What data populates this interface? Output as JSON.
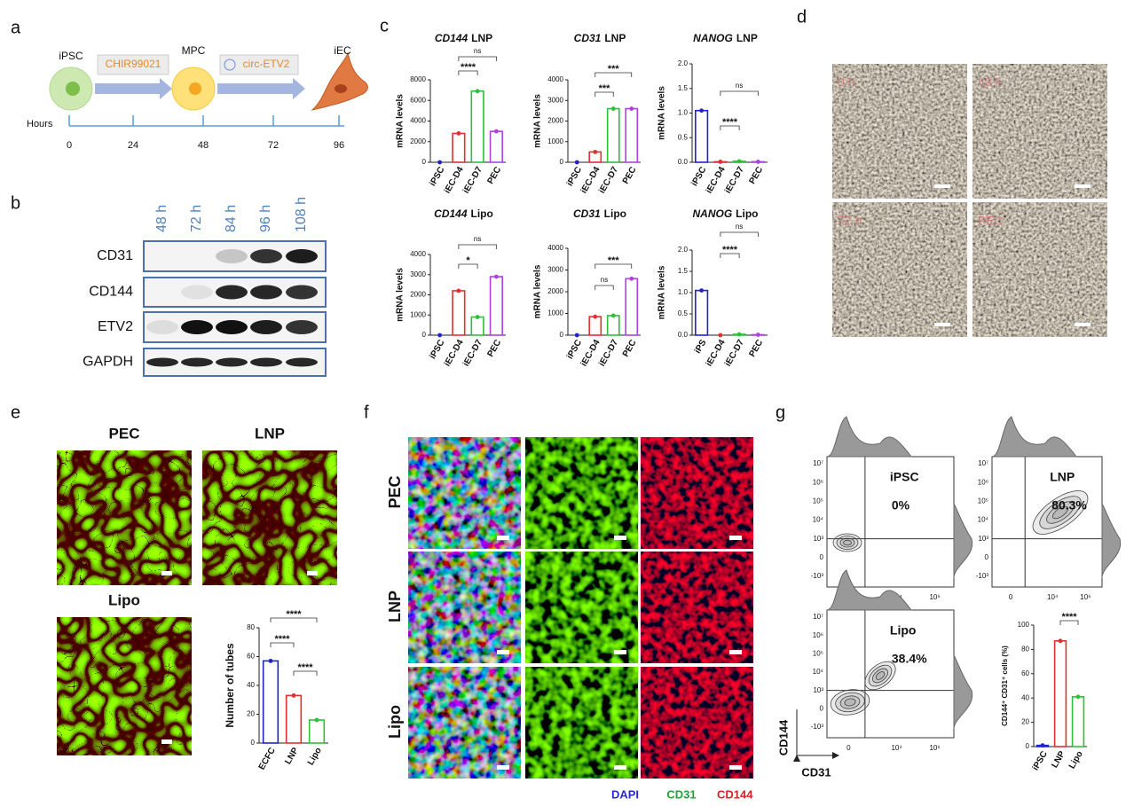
{
  "panel_letters": [
    "a",
    "b",
    "c",
    "d",
    "e",
    "f",
    "g"
  ],
  "panel_a": {
    "stages": [
      "iPSC",
      "MPC",
      "iEC"
    ],
    "steps": [
      "CHIR99021",
      "circ-ETV2"
    ],
    "axis_label": "Hours",
    "ticks": [
      0,
      24,
      48,
      72,
      96
    ]
  },
  "panel_b": {
    "lanes": [
      "48 h",
      "72 h",
      "84 h",
      "96 h",
      "108 h"
    ],
    "proteins": [
      "CD31",
      "CD144",
      "ETV2",
      "GAPDH"
    ]
  },
  "panel_d": {
    "image_labels": [
      "0 h",
      "48 h",
      "72 h",
      "PEC"
    ]
  },
  "panel_e": {
    "image_labels": [
      "PEC",
      "LNP",
      "Lipo"
    ]
  },
  "panel_f": {
    "row_labels": [
      "PEC",
      "LNP",
      "Lipo"
    ],
    "channels": [
      {
        "name": "DAPI",
        "color": "#2b2bd6"
      },
      {
        "name": "CD31",
        "color": "#1fa33a"
      },
      {
        "name": "CD144",
        "color": "#e02020"
      }
    ]
  },
  "panel_g": {
    "plots": [
      {
        "label": "iPSC",
        "percent": "0%"
      },
      {
        "label": "LNP",
        "percent": "80.3%"
      },
      {
        "label": "Lipo",
        "percent": "38.4%"
      }
    ],
    "y_axis": "CD144",
    "x_axis": "CD31",
    "y_ticks": [
      "10⁷",
      "10⁶",
      "10⁵",
      "10⁴",
      "10³",
      "0",
      "-10³"
    ],
    "x_ticks": [
      "0",
      "10⁴",
      "10⁶"
    ]
  },
  "chart_data": [
    {
      "type": "bar",
      "title_gene": "CD144",
      "title_method": "LNP",
      "y_label": "mRNA levels",
      "categories": [
        "iPSC",
        "iEC-D4",
        "iEC-D7",
        "PEC"
      ],
      "values": [
        0,
        2800,
        6900,
        3000
      ],
      "colors": [
        "#2222cc",
        "#e03030",
        "#2fbf3a",
        "#b040e0"
      ],
      "ylim": [
        0,
        8000
      ],
      "yticks": [
        0,
        2000,
        4000,
        6000,
        8000
      ],
      "significance": [
        "****",
        "ns"
      ]
    },
    {
      "type": "bar",
      "title_gene": "CD31",
      "title_method": "LNP",
      "y_label": "mRNA levels",
      "categories": [
        "iPSC",
        "iEC-D4",
        "iEC-D7",
        "PEC"
      ],
      "values": [
        0,
        500,
        2600,
        2600
      ],
      "colors": [
        "#2222cc",
        "#e03030",
        "#2fbf3a",
        "#b040e0"
      ],
      "ylim": [
        0,
        4000
      ],
      "yticks": [
        0,
        1000,
        2000,
        3000,
        4000
      ],
      "significance": [
        "***",
        "***"
      ]
    },
    {
      "type": "bar",
      "title_gene": "NANOG",
      "title_method": "LNP",
      "y_label": "mRNA levels",
      "categories": [
        "iPSC",
        "iEC-D4",
        "iEC-D7",
        "PEC"
      ],
      "values": [
        1.05,
        0.01,
        0.02,
        0.01
      ],
      "colors": [
        "#2222cc",
        "#e03030",
        "#2fbf3a",
        "#b040e0"
      ],
      "ylim": [
        0,
        2.0
      ],
      "yticks": [
        {
          "value": 0,
          "label": "0.0"
        },
        0.5,
        {
          "value": 1,
          "label": "1.0"
        },
        1.5,
        {
          "value": 2,
          "label": "2.0"
        }
      ],
      "significance": [
        "****",
        "ns"
      ]
    },
    {
      "type": "bar",
      "title_gene": "CD144",
      "title_method": "Lipo",
      "y_label": "mRNA levels",
      "categories": [
        "iPSC",
        "iEC-D4",
        "iEC-D7",
        "PEC"
      ],
      "values": [
        0,
        2200,
        900,
        2900
      ],
      "colors": [
        "#2222cc",
        "#e03030",
        "#2fbf3a",
        "#b040e0"
      ],
      "ylim": [
        0,
        4000
      ],
      "yticks": [
        0,
        1000,
        2000,
        3000,
        4000
      ],
      "significance": [
        "*",
        "ns"
      ]
    },
    {
      "type": "bar",
      "title_gene": "CD31",
      "title_method": "Lipo",
      "y_label": "mRNA levels",
      "categories": [
        "iPSC",
        "iEC-D4",
        "iEC-D7",
        "PEC"
      ],
      "values": [
        0,
        850,
        900,
        2600
      ],
      "colors": [
        "#2222cc",
        "#e03030",
        "#2fbf3a",
        "#b040e0"
      ],
      "ylim": [
        0,
        4000
      ],
      "yticks": [
        0,
        1000,
        2000,
        3000,
        4000
      ],
      "significance": [
        "ns",
        "***"
      ]
    },
    {
      "type": "bar",
      "title_gene": "NANOG",
      "title_method": "Lipo",
      "y_label": "mRNA levels",
      "categories": [
        "iPS",
        "iEC-D4",
        "iEC-D7",
        "PEC"
      ],
      "values": [
        1.05,
        0,
        0.02,
        0.01
      ],
      "colors": [
        "#2222cc",
        "#e03030",
        "#2fbf3a",
        "#b040e0"
      ],
      "ylim": [
        0,
        2.0
      ],
      "yticks": [
        {
          "value": 0,
          "label": "0.0"
        },
        0.5,
        {
          "value": 1,
          "label": "1.0"
        },
        1.5,
        {
          "value": 2,
          "label": "2.0"
        }
      ],
      "significance": [
        "****",
        "ns"
      ]
    },
    {
      "type": "bar",
      "y_label": "Number of tubes",
      "categories": [
        "ECFC",
        "LNP",
        "Lipo"
      ],
      "values": [
        57,
        33,
        16
      ],
      "colors": [
        "#2222cc",
        "#e03030",
        "#2fbf3a"
      ],
      "ylim": [
        0,
        80
      ],
      "yticks": [
        0,
        20,
        40,
        60,
        80
      ],
      "significance": [
        "****",
        "****",
        "****"
      ]
    },
    {
      "type": "bar",
      "y_label": "CD144⁺ CD31⁺ cells (%)",
      "categories": [
        "iPSC",
        "LNP",
        "Lipo"
      ],
      "values": [
        1,
        87,
        41
      ],
      "colors": [
        "#2222cc",
        "#e03030",
        "#2fbf3a"
      ],
      "ylim": [
        0,
        100
      ],
      "yticks": [
        0,
        20,
        40,
        60,
        80,
        100
      ],
      "significance": [
        "****"
      ]
    }
  ]
}
